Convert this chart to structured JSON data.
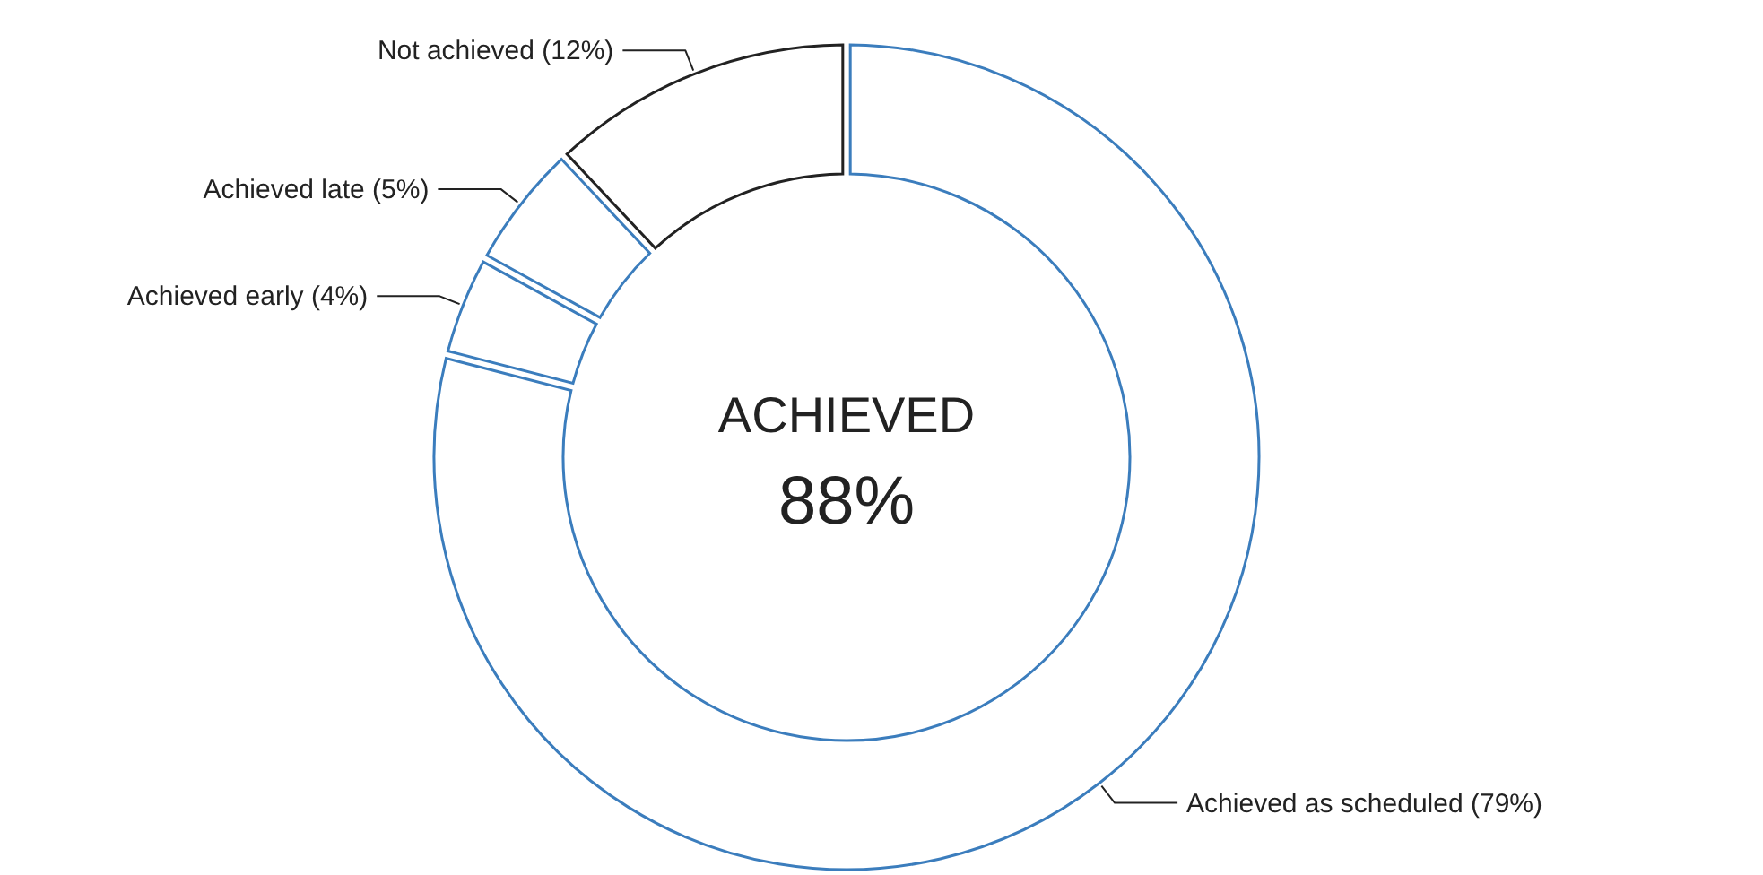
{
  "chart_data": {
    "type": "donut",
    "categories": [
      "Achieved as scheduled (79%)",
      "Achieved early (4%)",
      "Achieved late (5%)",
      "Not achieved (12%)"
    ],
    "values": [
      79,
      4,
      5,
      12
    ],
    "colors": [
      "#3b7dbd",
      "#3b7dbd",
      "#3b7dbd",
      "#222222"
    ],
    "annotations": [
      "ACHIEVED",
      "88%"
    ]
  }
}
